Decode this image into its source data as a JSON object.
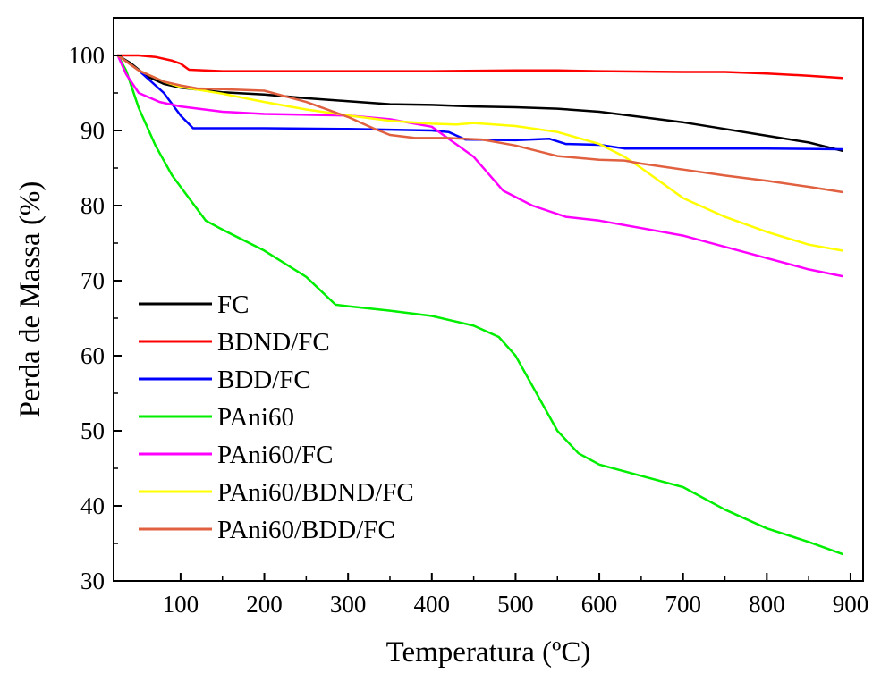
{
  "chart_data": {
    "type": "line",
    "title": "",
    "xlabel": "Temperatura (ºC)",
    "ylabel": "Perda de Massa (%)",
    "xlim": [
      20,
      915
    ],
    "ylim": [
      30,
      105
    ],
    "xticks": [
      100,
      200,
      300,
      400,
      500,
      600,
      700,
      800,
      900
    ],
    "yticks": [
      30,
      40,
      50,
      60,
      70,
      80,
      90,
      100
    ],
    "xtick_labels": [
      "100",
      "200",
      "300",
      "400",
      "500",
      "600",
      "700",
      "800",
      "900"
    ],
    "ytick_labels": [
      "30",
      "40",
      "50",
      "60",
      "70",
      "80",
      "90",
      "100"
    ],
    "grid": false,
    "legend_position": "bottom-left",
    "series": [
      {
        "name": "FC",
        "color": "#000000",
        "points": [
          [
            25,
            100
          ],
          [
            40,
            99
          ],
          [
            60,
            97.2
          ],
          [
            80,
            96.2
          ],
          [
            100,
            95.7
          ],
          [
            150,
            95.1
          ],
          [
            200,
            94.8
          ],
          [
            250,
            94.3
          ],
          [
            300,
            93.9
          ],
          [
            350,
            93.5
          ],
          [
            400,
            93.4
          ],
          [
            450,
            93.2
          ],
          [
            500,
            93.1
          ],
          [
            550,
            92.9
          ],
          [
            600,
            92.5
          ],
          [
            650,
            91.8
          ],
          [
            700,
            91.1
          ],
          [
            750,
            90.2
          ],
          [
            800,
            89.3
          ],
          [
            850,
            88.4
          ],
          [
            890,
            87.3
          ]
        ]
      },
      {
        "name": "BDND/FC",
        "color": "#ff0000",
        "points": [
          [
            25,
            100
          ],
          [
            50,
            100
          ],
          [
            70,
            99.8
          ],
          [
            90,
            99.3
          ],
          [
            100,
            98.9
          ],
          [
            110,
            98.1
          ],
          [
            150,
            97.9
          ],
          [
            200,
            97.9
          ],
          [
            300,
            97.9
          ],
          [
            400,
            97.9
          ],
          [
            500,
            98
          ],
          [
            550,
            98
          ],
          [
            600,
            97.9
          ],
          [
            700,
            97.8
          ],
          [
            750,
            97.8
          ],
          [
            800,
            97.6
          ],
          [
            850,
            97.3
          ],
          [
            890,
            97
          ]
        ]
      },
      {
        "name": "BDD/FC",
        "color": "#0000ff",
        "points": [
          [
            25,
            100
          ],
          [
            50,
            98
          ],
          [
            80,
            95
          ],
          [
            100,
            92
          ],
          [
            115,
            90.3
          ],
          [
            150,
            90.3
          ],
          [
            200,
            90.3
          ],
          [
            300,
            90.2
          ],
          [
            400,
            90
          ],
          [
            420,
            89.8
          ],
          [
            440,
            88.8
          ],
          [
            500,
            88.7
          ],
          [
            540,
            88.9
          ],
          [
            560,
            88.2
          ],
          [
            600,
            88.1
          ],
          [
            630,
            87.6
          ],
          [
            700,
            87.6
          ],
          [
            800,
            87.6
          ],
          [
            890,
            87.5
          ]
        ]
      },
      {
        "name": "PAni60",
        "color": "#00ee00",
        "points": [
          [
            25,
            100
          ],
          [
            35,
            98
          ],
          [
            50,
            93
          ],
          [
            70,
            88
          ],
          [
            90,
            84
          ],
          [
            110,
            81
          ],
          [
            130,
            78
          ],
          [
            150,
            76.8
          ],
          [
            200,
            74
          ],
          [
            250,
            70.5
          ],
          [
            285,
            66.8
          ],
          [
            300,
            66.6
          ],
          [
            350,
            66
          ],
          [
            400,
            65.3
          ],
          [
            450,
            64
          ],
          [
            480,
            62.5
          ],
          [
            500,
            60
          ],
          [
            525,
            55
          ],
          [
            550,
            50
          ],
          [
            575,
            47
          ],
          [
            600,
            45.5
          ],
          [
            650,
            44
          ],
          [
            700,
            42.5
          ],
          [
            750,
            39.5
          ],
          [
            800,
            37
          ],
          [
            850,
            35.2
          ],
          [
            890,
            33.6
          ]
        ]
      },
      {
        "name": "PAni60/FC",
        "color": "#ff00ff",
        "points": [
          [
            25,
            100
          ],
          [
            35,
            97.5
          ],
          [
            50,
            95
          ],
          [
            75,
            93.8
          ],
          [
            100,
            93.2
          ],
          [
            150,
            92.5
          ],
          [
            200,
            92.2
          ],
          [
            250,
            92.1
          ],
          [
            300,
            92
          ],
          [
            350,
            91.5
          ],
          [
            400,
            90.5
          ],
          [
            450,
            86.5
          ],
          [
            485,
            82
          ],
          [
            520,
            80
          ],
          [
            560,
            78.5
          ],
          [
            600,
            78
          ],
          [
            650,
            77
          ],
          [
            700,
            76
          ],
          [
            750,
            74.5
          ],
          [
            800,
            73
          ],
          [
            850,
            71.5
          ],
          [
            890,
            70.6
          ]
        ]
      },
      {
        "name": "PAni60/BDND/FC",
        "color": "#ffff00",
        "points": [
          [
            25,
            100
          ],
          [
            50,
            98
          ],
          [
            80,
            96.5
          ],
          [
            100,
            95.8
          ],
          [
            150,
            94.9
          ],
          [
            200,
            93.8
          ],
          [
            250,
            92.8
          ],
          [
            300,
            92
          ],
          [
            350,
            91.3
          ],
          [
            400,
            90.9
          ],
          [
            430,
            90.8
          ],
          [
            450,
            91
          ],
          [
            500,
            90.6
          ],
          [
            550,
            89.8
          ],
          [
            600,
            88.2
          ],
          [
            630,
            86.5
          ],
          [
            650,
            85
          ],
          [
            700,
            81
          ],
          [
            750,
            78.5
          ],
          [
            800,
            76.5
          ],
          [
            850,
            74.8
          ],
          [
            890,
            74
          ]
        ]
      },
      {
        "name": "PAni60/BDD/FC",
        "color": "#e06040",
        "points": [
          [
            25,
            100
          ],
          [
            50,
            98
          ],
          [
            80,
            96.5
          ],
          [
            100,
            96
          ],
          [
            120,
            95.6
          ],
          [
            150,
            95.5
          ],
          [
            200,
            95.3
          ],
          [
            250,
            93.8
          ],
          [
            300,
            91.8
          ],
          [
            330,
            90.3
          ],
          [
            350,
            89.4
          ],
          [
            380,
            89
          ],
          [
            420,
            89
          ],
          [
            460,
            88.8
          ],
          [
            500,
            88
          ],
          [
            550,
            86.6
          ],
          [
            600,
            86.1
          ],
          [
            630,
            86
          ],
          [
            650,
            85.6
          ],
          [
            700,
            84.8
          ],
          [
            750,
            84
          ],
          [
            800,
            83.3
          ],
          [
            850,
            82.5
          ],
          [
            890,
            81.8
          ]
        ]
      }
    ]
  }
}
